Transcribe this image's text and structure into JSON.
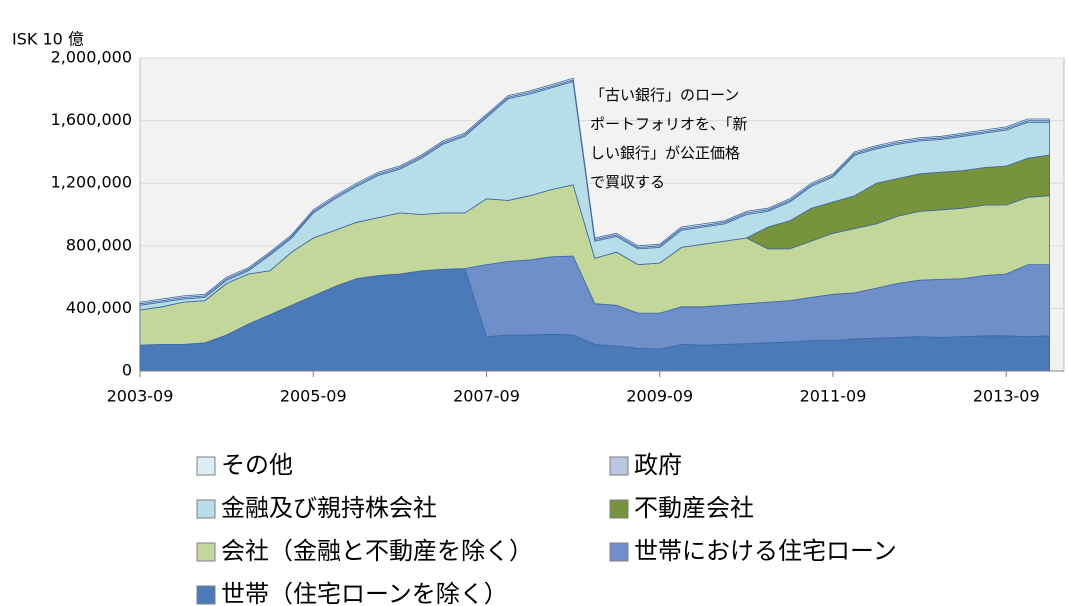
{
  "chart_data": {
    "type": "stacked_area",
    "y_label": "ISK 10 億",
    "annotation": [
      "「古い銀行」のローン",
      "ポートフォリオを、「新",
      "しい銀行」が公正価格",
      "で買収する"
    ],
    "x": [
      "2003-09",
      "2003-12",
      "2004-03",
      "2004-06",
      "2004-09",
      "2004-12",
      "2005-03",
      "2005-06",
      "2005-09",
      "2005-12",
      "2006-03",
      "2006-06",
      "2006-09",
      "2006-12",
      "2007-03",
      "2007-06",
      "2007-09",
      "2007-12",
      "2008-03",
      "2008-06",
      "2008-09",
      "2008-12",
      "2009-03",
      "2009-06",
      "2009-09",
      "2009-12",
      "2010-03",
      "2010-06",
      "2010-09",
      "2010-12",
      "2011-03",
      "2011-06",
      "2011-09",
      "2011-12",
      "2012-03",
      "2012-06",
      "2012-09",
      "2012-12",
      "2013-03",
      "2013-06",
      "2013-09",
      "2013-12",
      "2014-03"
    ],
    "xlim": [
      "2003-09",
      "2014-05"
    ],
    "xticks": [
      "2003-09",
      "2005-09",
      "2007-09",
      "2009-09",
      "2011-09",
      "2013-09"
    ],
    "ylim": [
      0,
      2000000
    ],
    "yticks": [
      0,
      {
        "value": 400000,
        "label": "400,000"
      },
      {
        "value": 800000,
        "label": "800,000"
      },
      {
        "value": 1200000,
        "label": "1,200,000"
      },
      {
        "value": 1600000,
        "label": "1,600,000"
      },
      {
        "value": 2000000,
        "label": "2,000,000"
      }
    ],
    "grid": true,
    "series": [
      {
        "name": "世帯（住宅ローンを除く）",
        "color": "#4a7ab8",
        "values": [
          165000,
          170000,
          170000,
          180000,
          230000,
          300000,
          360000,
          420000,
          480000,
          540000,
          590000,
          610000,
          620000,
          640000,
          650000,
          655000,
          220000,
          230000,
          230000,
          235000,
          230000,
          170000,
          160000,
          145000,
          140000,
          170000,
          165000,
          170000,
          175000,
          180000,
          185000,
          195000,
          195000,
          205000,
          210000,
          215000,
          220000,
          215000,
          220000,
          225000,
          225000,
          220000,
          225000
        ]
      },
      {
        "name": "世帯における住宅ローン",
        "color": "#6f8fcb",
        "values": [
          0,
          0,
          0,
          0,
          0,
          0,
          0,
          0,
          0,
          0,
          0,
          0,
          0,
          0,
          0,
          0,
          460000,
          470000,
          480000,
          495000,
          505000,
          260000,
          260000,
          225000,
          230000,
          240000,
          245000,
          250000,
          255000,
          260000,
          265000,
          275000,
          295000,
          295000,
          320000,
          345000,
          360000,
          370000,
          370000,
          385000,
          395000,
          460000,
          455000
        ]
      },
      {
        "name": "会社（金融と不動産を除く）",
        "color": "#c4d79b",
        "values": [
          225000,
          240000,
          270000,
          270000,
          330000,
          320000,
          280000,
          340000,
          370000,
          360000,
          360000,
          370000,
          390000,
          360000,
          360000,
          355000,
          420000,
          390000,
          410000,
          430000,
          455000,
          290000,
          340000,
          310000,
          320000,
          380000,
          400000,
          410000,
          420000,
          340000,
          330000,
          360000,
          390000,
          410000,
          410000,
          430000,
          440000,
          445000,
          450000,
          450000,
          440000,
          430000,
          440000
        ]
      },
      {
        "name": "不動産会社",
        "color": "#77933c",
        "values": [
          0,
          0,
          0,
          0,
          0,
          0,
          0,
          0,
          0,
          0,
          0,
          0,
          0,
          0,
          0,
          0,
          0,
          0,
          0,
          0,
          0,
          0,
          0,
          0,
          0,
          0,
          0,
          0,
          0,
          140000,
          180000,
          210000,
          200000,
          210000,
          260000,
          240000,
          240000,
          240000,
          240000,
          240000,
          250000,
          250000,
          260000
        ]
      },
      {
        "name": "金融及び親持株会社",
        "color": "#b7dde8",
        "values": [
          30000,
          30000,
          20000,
          20000,
          20000,
          20000,
          100000,
          90000,
          160000,
          200000,
          230000,
          270000,
          280000,
          360000,
          440000,
          490000,
          520000,
          650000,
          650000,
          650000,
          660000,
          110000,
          100000,
          100000,
          100000,
          110000,
          110000,
          110000,
          150000,
          100000,
          120000,
          140000,
          160000,
          260000,
          220000,
          220000,
          210000,
          210000,
          220000,
          220000,
          230000,
          230000,
          210000
        ]
      },
      {
        "name": "政府",
        "color": "#b9c7e0",
        "values": [
          10000,
          10000,
          10000,
          10000,
          10000,
          10000,
          10000,
          10000,
          10000,
          10000,
          10000,
          10000,
          10000,
          10000,
          10000,
          10000,
          10000,
          10000,
          10000,
          10000,
          10000,
          10000,
          10000,
          10000,
          10000,
          10000,
          10000,
          10000,
          10000,
          10000,
          10000,
          10000,
          10000,
          10000,
          10000,
          10000,
          10000,
          10000,
          10000,
          10000,
          10000,
          10000,
          10000
        ]
      },
      {
        "name": "その他",
        "color": "#dbeef4",
        "values": [
          10000,
          10000,
          10000,
          10000,
          10000,
          10000,
          10000,
          10000,
          10000,
          10000,
          10000,
          10000,
          10000,
          10000,
          10000,
          10000,
          10000,
          10000,
          10000,
          10000,
          10000,
          10000,
          10000,
          10000,
          10000,
          10000,
          10000,
          10000,
          10000,
          10000,
          10000,
          10000,
          10000,
          10000,
          10000,
          10000,
          10000,
          10000,
          10000,
          10000,
          10000,
          10000,
          10000
        ]
      }
    ]
  }
}
